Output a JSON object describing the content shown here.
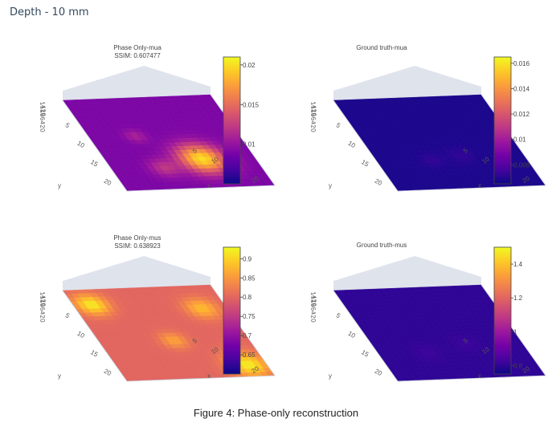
{
  "header": {
    "title": "Depth - 10 mm"
  },
  "caption": "Figure 4: Phase-only reconstruction",
  "colorscale": [
    "#0d0887",
    "#46039f",
    "#7201a8",
    "#9c179e",
    "#bd3786",
    "#d8576b",
    "#ed7953",
    "#fb9f3a",
    "#fdca26",
    "#f0f921"
  ],
  "chart_data": [
    {
      "type": "surface3d",
      "title": "Phase Only-mua",
      "subtitle": "SSIM: 0.607477",
      "x_ticks": [
        "5",
        "10",
        "15",
        "20"
      ],
      "x_label": "x",
      "y_ticks": [
        "5",
        "10",
        "15",
        "20"
      ],
      "y_label": "y",
      "z_ticks": [
        "14",
        "12",
        "10",
        "8",
        "6",
        "4",
        "2",
        "0"
      ],
      "colorbar": {
        "ticks": [
          "0.02",
          "0.015",
          "0.01"
        ],
        "range": [
          0.005,
          0.021
        ]
      },
      "background_value": 0.009,
      "blobs": [
        {
          "x": 16.5,
          "y": 15.5,
          "r": 3.5,
          "peak": 0.02
        },
        {
          "x": 18.5,
          "y": 8.5,
          "r": 2.2,
          "peak": 0.012
        },
        {
          "x": 10.0,
          "y": 7.5,
          "r": 1.6,
          "peak": 0.011
        }
      ]
    },
    {
      "type": "surface3d",
      "title": "Ground truth-mua",
      "subtitle": "",
      "x_ticks": [
        "5",
        "10",
        "15",
        "20"
      ],
      "x_label": "x",
      "y_ticks": [
        "5",
        "10",
        "15",
        "20"
      ],
      "y_label": "y",
      "z_ticks": [
        "14",
        "12",
        "10",
        "8",
        "6",
        "4",
        "2",
        "0"
      ],
      "colorbar": {
        "ticks": [
          "0.016",
          "0.014",
          "0.012",
          "0.01",
          "0.008"
        ],
        "range": [
          0.0065,
          0.0165
        ]
      },
      "background_value": 0.0068,
      "blobs": [
        {
          "x": 15.5,
          "y": 14.0,
          "r": 2.0,
          "peak": 0.0072
        },
        {
          "x": 16.5,
          "y": 9.0,
          "r": 1.8,
          "peak": 0.0072
        }
      ]
    },
    {
      "type": "surface3d",
      "title": "Phase Only-mus",
      "subtitle": "SSIM: 0.638923",
      "x_ticks": [
        "5",
        "10",
        "15",
        "20"
      ],
      "x_label": "x",
      "y_ticks": [
        "5",
        "10",
        "15",
        "20"
      ],
      "y_label": "y",
      "z_ticks": [
        "14",
        "12",
        "10",
        "8",
        "6",
        "4",
        "2",
        "0"
      ],
      "colorbar": {
        "ticks": [
          "0.9",
          "0.85",
          "0.8",
          "0.75",
          "0.7",
          "0.65"
        ],
        "range": [
          0.6,
          0.93
        ]
      },
      "background_value": 0.8,
      "blobs": [
        {
          "x": 4.0,
          "y": 3.0,
          "r": 2.5,
          "peak": 0.92
        },
        {
          "x": 21.0,
          "y": 21.0,
          "r": 3.0,
          "peak": 0.92
        },
        {
          "x": 6.0,
          "y": 20.0,
          "r": 2.5,
          "peak": 0.88
        },
        {
          "x": 14.0,
          "y": 12.0,
          "r": 2.0,
          "peak": 0.86
        }
      ]
    },
    {
      "type": "surface3d",
      "title": "Ground truth-mus",
      "subtitle": "",
      "x_ticks": [
        "5",
        "10",
        "15",
        "20"
      ],
      "x_label": "x",
      "y_ticks": [
        "5",
        "10",
        "15",
        "20"
      ],
      "y_label": "y",
      "z_ticks": [
        "14",
        "12",
        "10",
        "8",
        "6",
        "4",
        "2",
        "0"
      ],
      "colorbar": {
        "ticks": [
          "1.4",
          "1.2",
          "1",
          "0.8"
        ],
        "range": [
          0.75,
          1.5
        ]
      },
      "background_value": 0.8,
      "blobs": [
        {
          "x": 15.0,
          "y": 15.0,
          "r": 2.0,
          "peak": 0.82
        },
        {
          "x": 17.0,
          "y": 8.0,
          "r": 2.0,
          "peak": 0.82
        }
      ]
    }
  ]
}
